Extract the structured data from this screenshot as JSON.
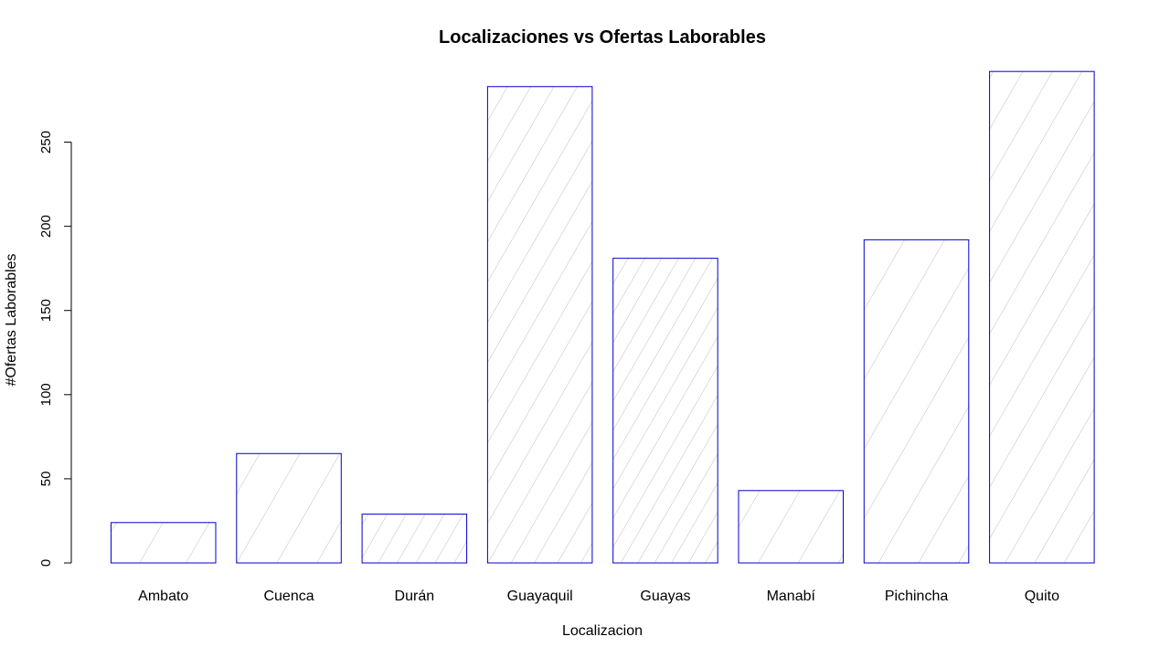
{
  "chart_data": {
    "type": "bar",
    "title": "Localizaciones vs Ofertas Laborables",
    "xlabel": "Localizacion",
    "ylabel": "#Ofertas Laborables",
    "categories": [
      "Ambato",
      "Cuenca",
      "Durán",
      "Guayaquil",
      "Guayas",
      "Manabí",
      "Pichincha",
      "Quito"
    ],
    "values": [
      24,
      65,
      29,
      283,
      181,
      43,
      192,
      292
    ],
    "yticks": [
      0,
      50,
      100,
      150,
      200,
      250
    ],
    "ytick_labels": [
      "0",
      "50",
      "100",
      "150",
      "200",
      "250"
    ],
    "ylim": [
      0,
      292
    ],
    "grid": false,
    "colors": {
      "bar_border": "#0000cc",
      "hatch": "#bebebe",
      "axis": "#000000"
    }
  }
}
